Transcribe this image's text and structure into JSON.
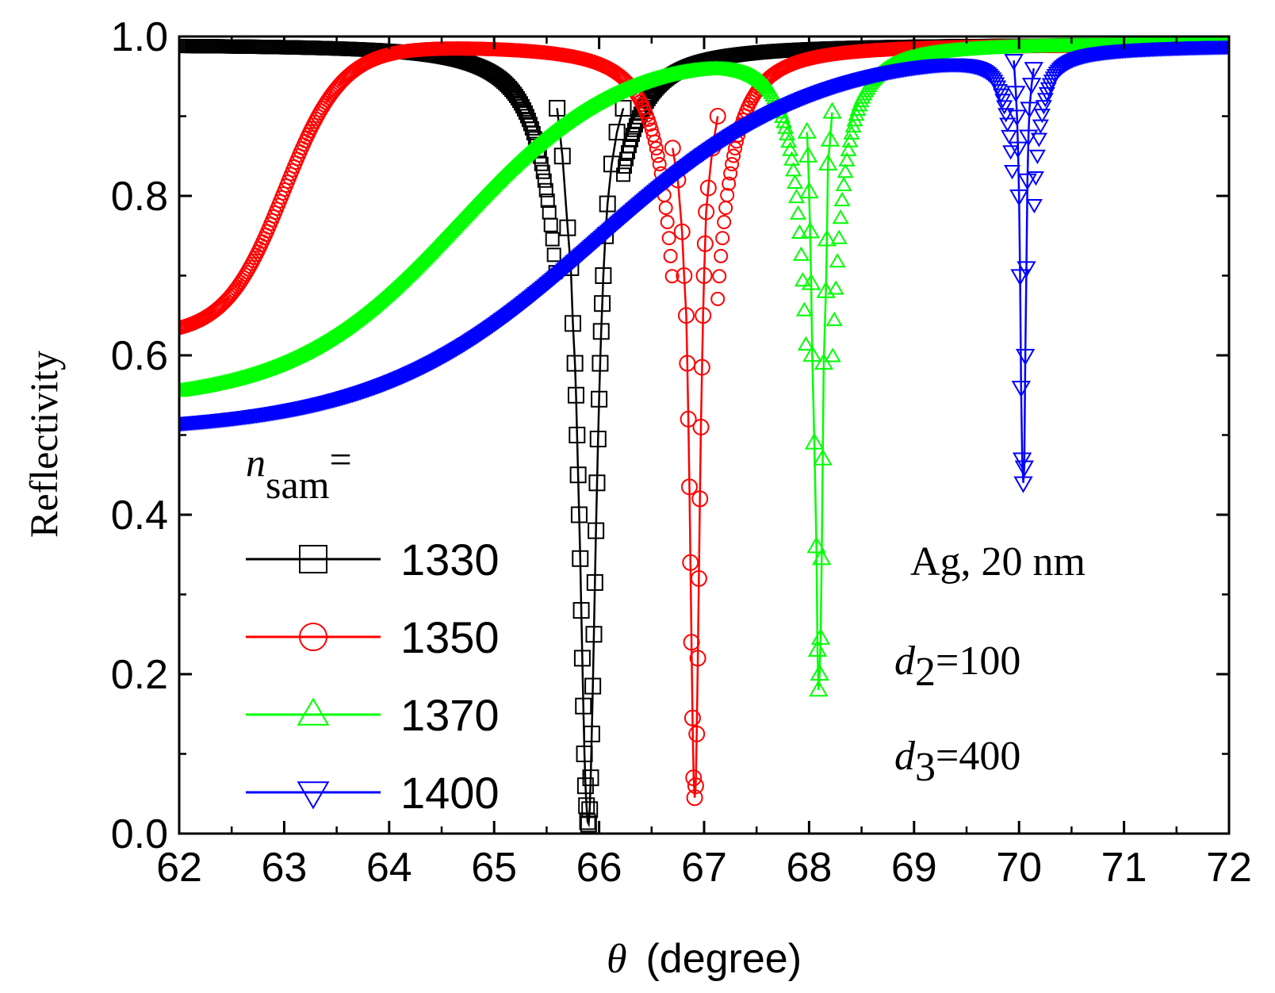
{
  "chart_data": {
    "type": "scatter",
    "xlabel_symbol": "θ",
    "xlabel_text": "(degree)",
    "ylabel": "Reflectivity",
    "xlim": [
      62,
      72
    ],
    "ylim": [
      0.0,
      1.0
    ],
    "xticks": [
      "62",
      "63",
      "64",
      "65",
      "66",
      "67",
      "68",
      "69",
      "70",
      "71",
      "72"
    ],
    "yticks": [
      "0.0",
      "0.2",
      "0.4",
      "0.6",
      "0.8",
      "1.0"
    ],
    "legend_title_symbol": "n",
    "legend_title_subscript": "sam",
    "legend_title_suffix": "=",
    "annotations": {
      "metal": "Ag, 20 nm",
      "d2_symbol": "d",
      "d2_sub": "2",
      "d2_value": "=100",
      "d3_symbol": "d",
      "d3_sub": "3",
      "d3_value": "=400"
    },
    "series": [
      {
        "name": "1330",
        "color": "#000000",
        "marker": "square",
        "low_angle": {
          "x0": 62.0,
          "r0": 0.99,
          "theta_c": 62.0,
          "w": 0.5
        },
        "resonance": {
          "theta0": 65.85,
          "min": 0.01,
          "width": 0.34
        },
        "dense_step": 0.015,
        "dip_points": [
          {
            "x": 65.6,
            "y": 0.91
          },
          {
            "x": 65.65,
            "y": 0.85
          },
          {
            "x": 65.7,
            "y": 0.76
          },
          {
            "x": 65.73,
            "y": 0.71
          },
          {
            "x": 65.75,
            "y": 0.64
          },
          {
            "x": 65.77,
            "y": 0.59
          },
          {
            "x": 65.78,
            "y": 0.55
          },
          {
            "x": 65.79,
            "y": 0.5
          },
          {
            "x": 65.8,
            "y": 0.45
          },
          {
            "x": 65.81,
            "y": 0.4
          },
          {
            "x": 65.82,
            "y": 0.345
          },
          {
            "x": 65.83,
            "y": 0.28
          },
          {
            "x": 65.84,
            "y": 0.22
          },
          {
            "x": 65.85,
            "y": 0.16
          },
          {
            "x": 65.86,
            "y": 0.1
          },
          {
            "x": 65.87,
            "y": 0.06
          },
          {
            "x": 65.88,
            "y": 0.035
          },
          {
            "x": 65.89,
            "y": 0.015
          },
          {
            "x": 65.9,
            "y": 0.012
          },
          {
            "x": 65.91,
            "y": 0.03
          },
          {
            "x": 65.92,
            "y": 0.07
          },
          {
            "x": 65.93,
            "y": 0.125
          },
          {
            "x": 65.94,
            "y": 0.185
          },
          {
            "x": 65.95,
            "y": 0.25
          },
          {
            "x": 65.96,
            "y": 0.315
          },
          {
            "x": 65.97,
            "y": 0.38
          },
          {
            "x": 65.98,
            "y": 0.44
          },
          {
            "x": 65.99,
            "y": 0.495
          },
          {
            "x": 66.0,
            "y": 0.545
          },
          {
            "x": 66.01,
            "y": 0.59
          },
          {
            "x": 66.02,
            "y": 0.63
          },
          {
            "x": 66.03,
            "y": 0.665
          },
          {
            "x": 66.04,
            "y": 0.7
          },
          {
            "x": 66.06,
            "y": 0.75
          },
          {
            "x": 66.08,
            "y": 0.79
          },
          {
            "x": 66.12,
            "y": 0.84
          },
          {
            "x": 66.17,
            "y": 0.88
          },
          {
            "x": 66.23,
            "y": 0.91
          }
        ]
      },
      {
        "name": "1350",
        "color": "#ff0000",
        "marker": "circle",
        "low_angle": {
          "x0": 62.0,
          "r0": 0.635,
          "theta_c": 63.0,
          "w": 0.28
        },
        "resonance": {
          "theta0": 66.92,
          "min": 0.045,
          "width": 0.3
        },
        "dense_step": 0.015,
        "dip_points": [
          {
            "x": 66.7,
            "y": 0.86
          },
          {
            "x": 66.75,
            "y": 0.82
          },
          {
            "x": 66.79,
            "y": 0.755
          },
          {
            "x": 66.81,
            "y": 0.7
          },
          {
            "x": 66.83,
            "y": 0.65
          },
          {
            "x": 66.84,
            "y": 0.59
          },
          {
            "x": 66.85,
            "y": 0.52
          },
          {
            "x": 66.86,
            "y": 0.435
          },
          {
            "x": 66.87,
            "y": 0.34
          },
          {
            "x": 66.88,
            "y": 0.24
          },
          {
            "x": 66.89,
            "y": 0.145
          },
          {
            "x": 66.9,
            "y": 0.07
          },
          {
            "x": 66.91,
            "y": 0.045
          },
          {
            "x": 66.92,
            "y": 0.06
          },
          {
            "x": 66.93,
            "y": 0.125
          },
          {
            "x": 66.94,
            "y": 0.22
          },
          {
            "x": 66.95,
            "y": 0.32
          },
          {
            "x": 66.96,
            "y": 0.42
          },
          {
            "x": 66.97,
            "y": 0.51
          },
          {
            "x": 66.98,
            "y": 0.585
          },
          {
            "x": 66.99,
            "y": 0.65
          },
          {
            "x": 67.0,
            "y": 0.7
          },
          {
            "x": 67.01,
            "y": 0.74
          },
          {
            "x": 67.02,
            "y": 0.78
          },
          {
            "x": 67.04,
            "y": 0.81
          },
          {
            "x": 67.08,
            "y": 0.86
          },
          {
            "x": 67.13,
            "y": 0.9
          }
        ]
      },
      {
        "name": "1370",
        "color": "#00ff00",
        "marker": "triangle-up",
        "low_angle": {
          "x0": 62.0,
          "r0": 0.555,
          "theta_c": 64.65,
          "w": 0.8
        },
        "resonance": {
          "theta0": 68.1,
          "min": 0.18,
          "width": 0.24
        },
        "dense_step": 0.015,
        "dip_points": [
          {
            "x": 67.98,
            "y": 0.88
          },
          {
            "x": 67.99,
            "y": 0.85
          },
          {
            "x": 68.0,
            "y": 0.805
          },
          {
            "x": 68.01,
            "y": 0.755
          },
          {
            "x": 68.02,
            "y": 0.69
          },
          {
            "x": 68.03,
            "y": 0.6
          },
          {
            "x": 68.05,
            "y": 0.49
          },
          {
            "x": 68.07,
            "y": 0.36
          },
          {
            "x": 68.08,
            "y": 0.23
          },
          {
            "x": 68.09,
            "y": 0.18
          },
          {
            "x": 68.1,
            "y": 0.2
          },
          {
            "x": 68.11,
            "y": 0.245
          },
          {
            "x": 68.12,
            "y": 0.345
          },
          {
            "x": 68.13,
            "y": 0.47
          },
          {
            "x": 68.14,
            "y": 0.59
          },
          {
            "x": 68.16,
            "y": 0.68
          },
          {
            "x": 68.17,
            "y": 0.745
          },
          {
            "x": 68.18,
            "y": 0.84
          },
          {
            "x": 68.2,
            "y": 0.87
          },
          {
            "x": 68.22,
            "y": 0.905
          }
        ]
      },
      {
        "name": "1400",
        "color": "#0000ff",
        "marker": "triangle-down",
        "low_angle": {
          "x0": 62.0,
          "r0": 0.515,
          "theta_c": 66.0,
          "w": 1.05
        },
        "resonance": {
          "theta0": 70.05,
          "min": 0.44,
          "width": 0.14
        },
        "dense_step": 0.015,
        "dip_points": [
          {
            "x": 69.95,
            "y": 0.97
          },
          {
            "x": 69.97,
            "y": 0.93
          },
          {
            "x": 69.98,
            "y": 0.9
          },
          {
            "x": 69.99,
            "y": 0.86
          },
          {
            "x": 70.0,
            "y": 0.8
          },
          {
            "x": 70.01,
            "y": 0.7
          },
          {
            "x": 70.02,
            "y": 0.56
          },
          {
            "x": 70.03,
            "y": 0.47
          },
          {
            "x": 70.04,
            "y": 0.44
          },
          {
            "x": 70.05,
            "y": 0.46
          },
          {
            "x": 70.06,
            "y": 0.6
          },
          {
            "x": 70.07,
            "y": 0.71
          },
          {
            "x": 70.08,
            "y": 0.82
          },
          {
            "x": 70.09,
            "y": 0.875
          },
          {
            "x": 70.1,
            "y": 0.91
          },
          {
            "x": 70.12,
            "y": 0.94
          },
          {
            "x": 70.14,
            "y": 0.96
          }
        ]
      }
    ]
  }
}
